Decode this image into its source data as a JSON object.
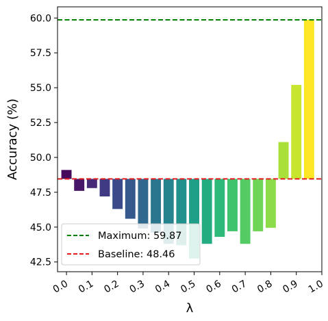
{
  "chart_data": {
    "type": "bar",
    "xlabel": "λ",
    "ylabel": "Accuracy (%)",
    "ylim": [
      41.8,
      60.8
    ],
    "yticks": [
      42.5,
      45.0,
      47.5,
      50.0,
      52.5,
      55.0,
      57.5,
      60.0
    ],
    "ytick_labels": [
      "42.5",
      "45.0",
      "47.5",
      "50.0",
      "52.5",
      "55.0",
      "57.5",
      "60.0"
    ],
    "xticks": [
      0.0,
      0.1,
      0.2,
      0.3,
      0.4,
      0.5,
      0.6,
      0.7,
      0.8,
      0.9,
      1.0
    ],
    "xtick_labels": [
      "0.0",
      "0.1",
      "0.2",
      "0.3",
      "0.4",
      "0.5",
      "0.6",
      "0.7",
      "0.8",
      "0.9",
      "1.0"
    ],
    "baseline": 48.46,
    "bars": [
      {
        "x": 0.0,
        "value": 49.1,
        "color": "#46085c"
      },
      {
        "x": 0.05,
        "value": 47.6,
        "color": "#471669"
      },
      {
        "x": 0.1,
        "value": 47.8,
        "color": "#462a79"
      },
      {
        "x": 0.15,
        "value": 47.2,
        "color": "#403a84"
      },
      {
        "x": 0.2,
        "value": 46.3,
        "color": "#3b4a8b"
      },
      {
        "x": 0.25,
        "value": 45.6,
        "color": "#35598d"
      },
      {
        "x": 0.3,
        "value": 44.9,
        "color": "#2f678e"
      },
      {
        "x": 0.35,
        "value": 44.6,
        "color": "#2a768e"
      },
      {
        "x": 0.4,
        "value": 43.8,
        "color": "#25838e"
      },
      {
        "x": 0.45,
        "value": 43.7,
        "color": "#21918c"
      },
      {
        "x": 0.5,
        "value": 42.75,
        "color": "#1f9f88"
      },
      {
        "x": 0.55,
        "value": 43.8,
        "color": "#23ab82"
      },
      {
        "x": 0.6,
        "value": 44.3,
        "color": "#2eb87a"
      },
      {
        "x": 0.65,
        "value": 44.7,
        "color": "#3fc36f"
      },
      {
        "x": 0.7,
        "value": 43.8,
        "color": "#55cc63"
      },
      {
        "x": 0.75,
        "value": 44.7,
        "color": "#6ed556"
      },
      {
        "x": 0.8,
        "value": 44.95,
        "color": "#8cdc48"
      },
      {
        "x": 0.85,
        "value": 51.1,
        "color": "#aae03a"
      },
      {
        "x": 0.9,
        "value": 55.2,
        "color": "#c7e52d"
      },
      {
        "x": 0.95,
        "value": 59.87,
        "color": "#fde725"
      }
    ],
    "reference_lines": [
      {
        "name": "maximum",
        "value": 59.87,
        "color": "#008000",
        "style": "dashed"
      },
      {
        "name": "baseline",
        "value": 48.46,
        "color": "#e41a1c",
        "style": "dashed"
      }
    ],
    "legend": {
      "position": "lower-left",
      "entries": [
        {
          "label": "Maximum: 59.87",
          "color": "#008000"
        },
        {
          "label": "Baseline: 48.46",
          "color": "#e41a1c"
        }
      ]
    },
    "grid": false
  }
}
